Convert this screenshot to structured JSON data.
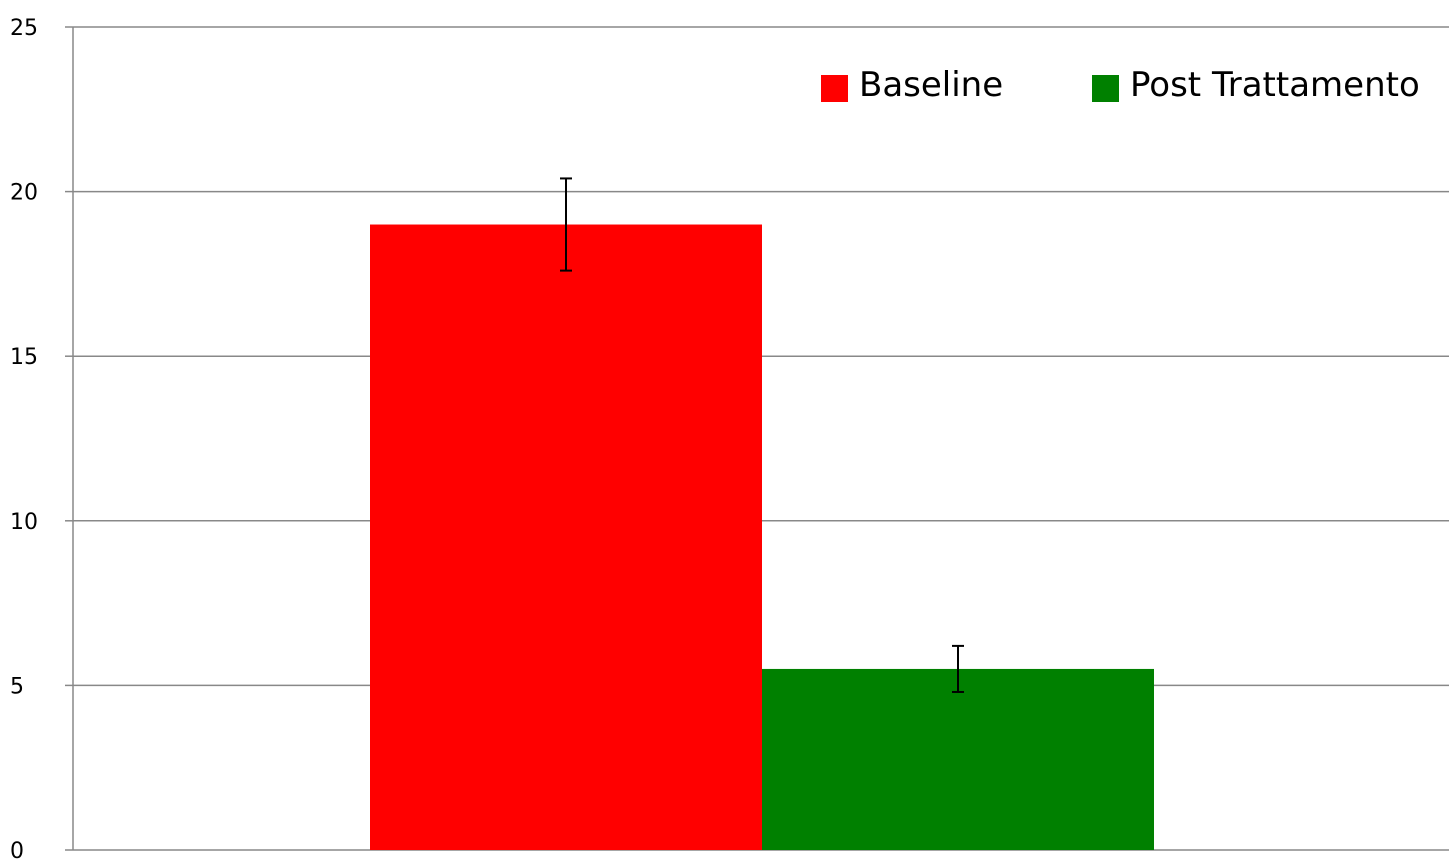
{
  "chart_data": {
    "type": "bar",
    "title": "",
    "xlabel": "",
    "ylabel": "",
    "ylim": [
      0,
      25
    ],
    "yticks": [
      0,
      5,
      10,
      15,
      20,
      25
    ],
    "grid": true,
    "legend_position": "top-right",
    "categories": [
      ""
    ],
    "series": [
      {
        "name": "Baseline",
        "color": "#ff0000",
        "values": [
          19.0
        ],
        "error": [
          1.4
        ]
      },
      {
        "name": "Post Trattamento",
        "color": "#008000",
        "values": [
          5.5
        ],
        "error": [
          0.7
        ]
      }
    ]
  }
}
